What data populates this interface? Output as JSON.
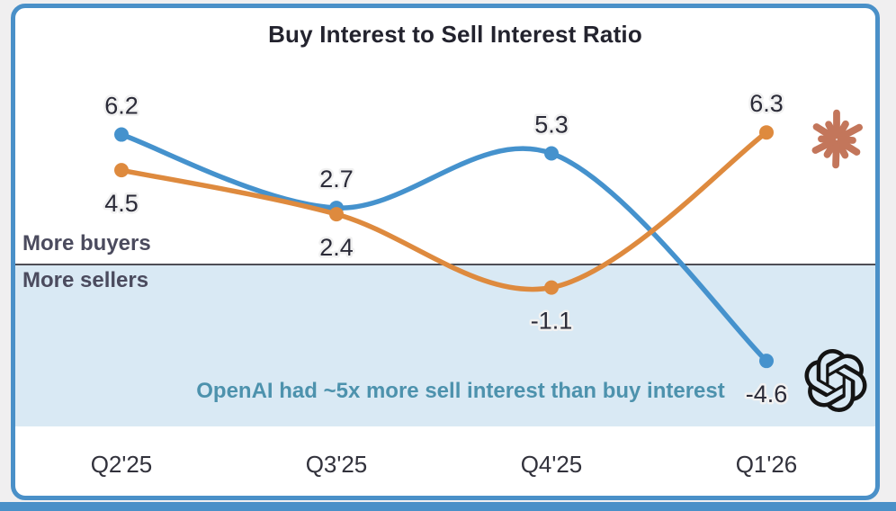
{
  "page": {
    "background": "#f0eff0",
    "accent_bar_color": "#4a90c8"
  },
  "card": {
    "border_color": "#4a90c8",
    "background": "#ffffff"
  },
  "chart_data": {
    "type": "line",
    "title": "Buy Interest to Sell Interest Ratio",
    "categories": [
      "Q2'25",
      "Q3'25",
      "Q4'25",
      "Q1'26"
    ],
    "series": [
      {
        "name": "OpenAI",
        "logo": "openai-logo-icon",
        "color": "#4592cd",
        "values": [
          6.2,
          2.7,
          5.3,
          -4.6
        ]
      },
      {
        "name": "Anthropic",
        "logo": "anthropic-star-icon",
        "color": "#de8a3e",
        "values": [
          4.5,
          2.4,
          -1.1,
          6.3
        ]
      }
    ],
    "baseline": 0,
    "baseline_color": "#4e4e56",
    "regions": {
      "above_label": "More buyers",
      "below_label": "More sellers",
      "below_fill": "#d9e9f4"
    },
    "annotation": "OpenAI had ~5x more sell interest than buy interest",
    "annotation_color": "#4d92ad",
    "ylim": [
      -7,
      9
    ],
    "grid": false,
    "legend_position": "none"
  },
  "icons": {
    "anthropic_star_color": "#c3765b",
    "openai_logo_color": "#141414"
  }
}
